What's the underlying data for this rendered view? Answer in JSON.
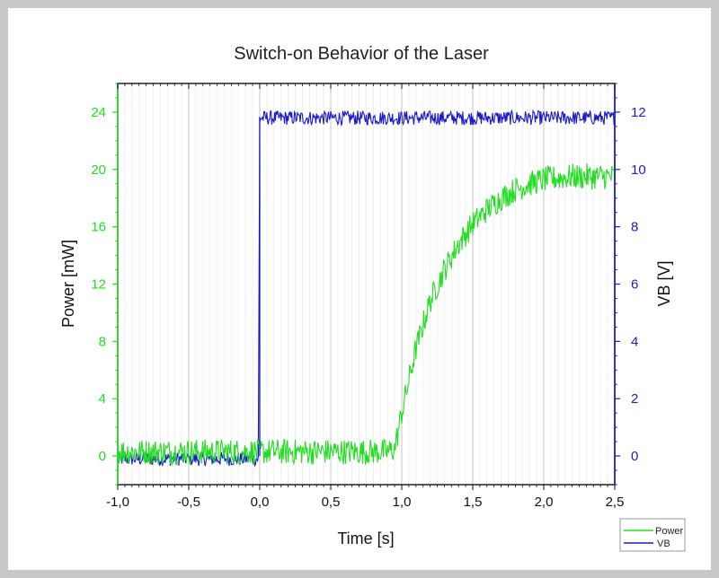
{
  "chart_data": {
    "type": "line",
    "title": "Switch-on Behavior of the Laser",
    "xlabel": "Time [s]",
    "ylabel_left": "Power [mW]",
    "ylabel_right": "VB [V]",
    "xlim": [
      -1.0,
      2.5
    ],
    "ylim_left": [
      -2,
      26
    ],
    "ylim_right": [
      -1,
      13
    ],
    "x_ticks": [
      -1.0,
      -0.5,
      0.0,
      0.5,
      1.0,
      1.5,
      2.0,
      2.5
    ],
    "x_tick_labels": [
      "-1,0",
      "-0,5",
      "0,0",
      "0,5",
      "1,0",
      "1,5",
      "2,0",
      "2,5"
    ],
    "left_ticks": [
      0,
      4,
      8,
      12,
      16,
      20,
      24
    ],
    "left_tick_labels": [
      "0",
      "4",
      "8",
      "12",
      "16",
      "20",
      "24"
    ],
    "right_ticks": [
      0,
      2,
      4,
      6,
      8,
      10,
      12
    ],
    "right_tick_labels": [
      "0",
      "2",
      "4",
      "6",
      "8",
      "10",
      "12"
    ],
    "grid": "vertical",
    "legend_position": "bottom-right",
    "colors": {
      "power": "#22dd22",
      "vb": "#1a1acc",
      "grid": "#c8c8c8"
    },
    "series": [
      {
        "name": "Power",
        "axis": "left",
        "x": [
          -1.0,
          -0.5,
          0.0,
          0.5,
          0.9,
          0.95,
          1.0,
          1.1,
          1.2,
          1.3,
          1.4,
          1.5,
          1.6,
          1.7,
          1.8,
          1.9,
          2.0,
          2.1,
          2.2,
          2.3,
          2.4,
          2.5
        ],
        "values": [
          0.3,
          0.3,
          0.3,
          0.3,
          0.3,
          0.5,
          3.0,
          7.5,
          10.8,
          13.0,
          14.8,
          16.2,
          17.2,
          18.0,
          18.6,
          19.0,
          19.3,
          19.4,
          19.5,
          19.5,
          19.5,
          19.5
        ],
        "noise": 0.9
      },
      {
        "name": "VB",
        "axis": "right",
        "x": [
          -1.0,
          -0.5,
          -0.01,
          0.0,
          0.5,
          1.0,
          1.5,
          2.0,
          2.5
        ],
        "values": [
          -0.1,
          -0.1,
          -0.1,
          11.8,
          11.8,
          11.8,
          11.8,
          11.8,
          11.8
        ],
        "noise": 0.25
      }
    ]
  }
}
